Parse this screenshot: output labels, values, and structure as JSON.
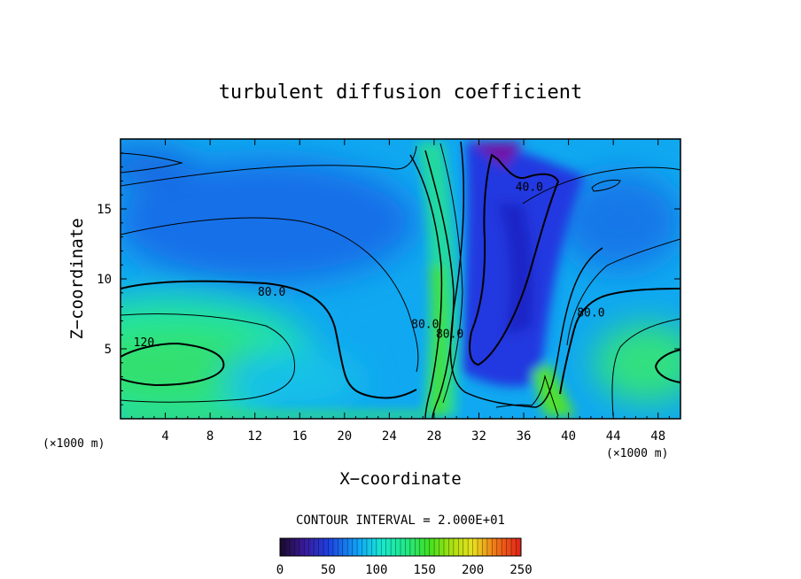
{
  "chart_data": {
    "type": "heatmap",
    "title": "turbulent diffusion coefficient",
    "xlabel": "X−coordinate",
    "ylabel": "Z−coordinate",
    "x_unit_left": "(×1000 m)",
    "x_unit_right": "(×1000 m)",
    "xlim": [
      0,
      50
    ],
    "ylim": [
      0,
      20
    ],
    "xticks": [
      4,
      8,
      12,
      16,
      20,
      24,
      28,
      32,
      36,
      40,
      44,
      48
    ],
    "yticks": [
      5,
      10,
      15
    ],
    "contour_interval_text": "CONTOUR INTERVAL = 2.000E+01",
    "contour_interval": 20,
    "colorbar": {
      "min": 0,
      "max": 250,
      "ticks": [
        0,
        50,
        100,
        150,
        200,
        250
      ]
    },
    "contour_labels": [
      {
        "text": "120.",
        "x": 2.4,
        "z": 5.2
      },
      {
        "text": "80.0",
        "x": 13.5,
        "z": 8.8
      },
      {
        "text": "80.0",
        "x": 27.2,
        "z": 6.5
      },
      {
        "text": "80.0",
        "x": 29.4,
        "z": 5.8
      },
      {
        "text": "40.0",
        "x": 36.5,
        "z": 16.3
      },
      {
        "text": "80.0",
        "x": 42.0,
        "z": 7.3
      }
    ]
  }
}
